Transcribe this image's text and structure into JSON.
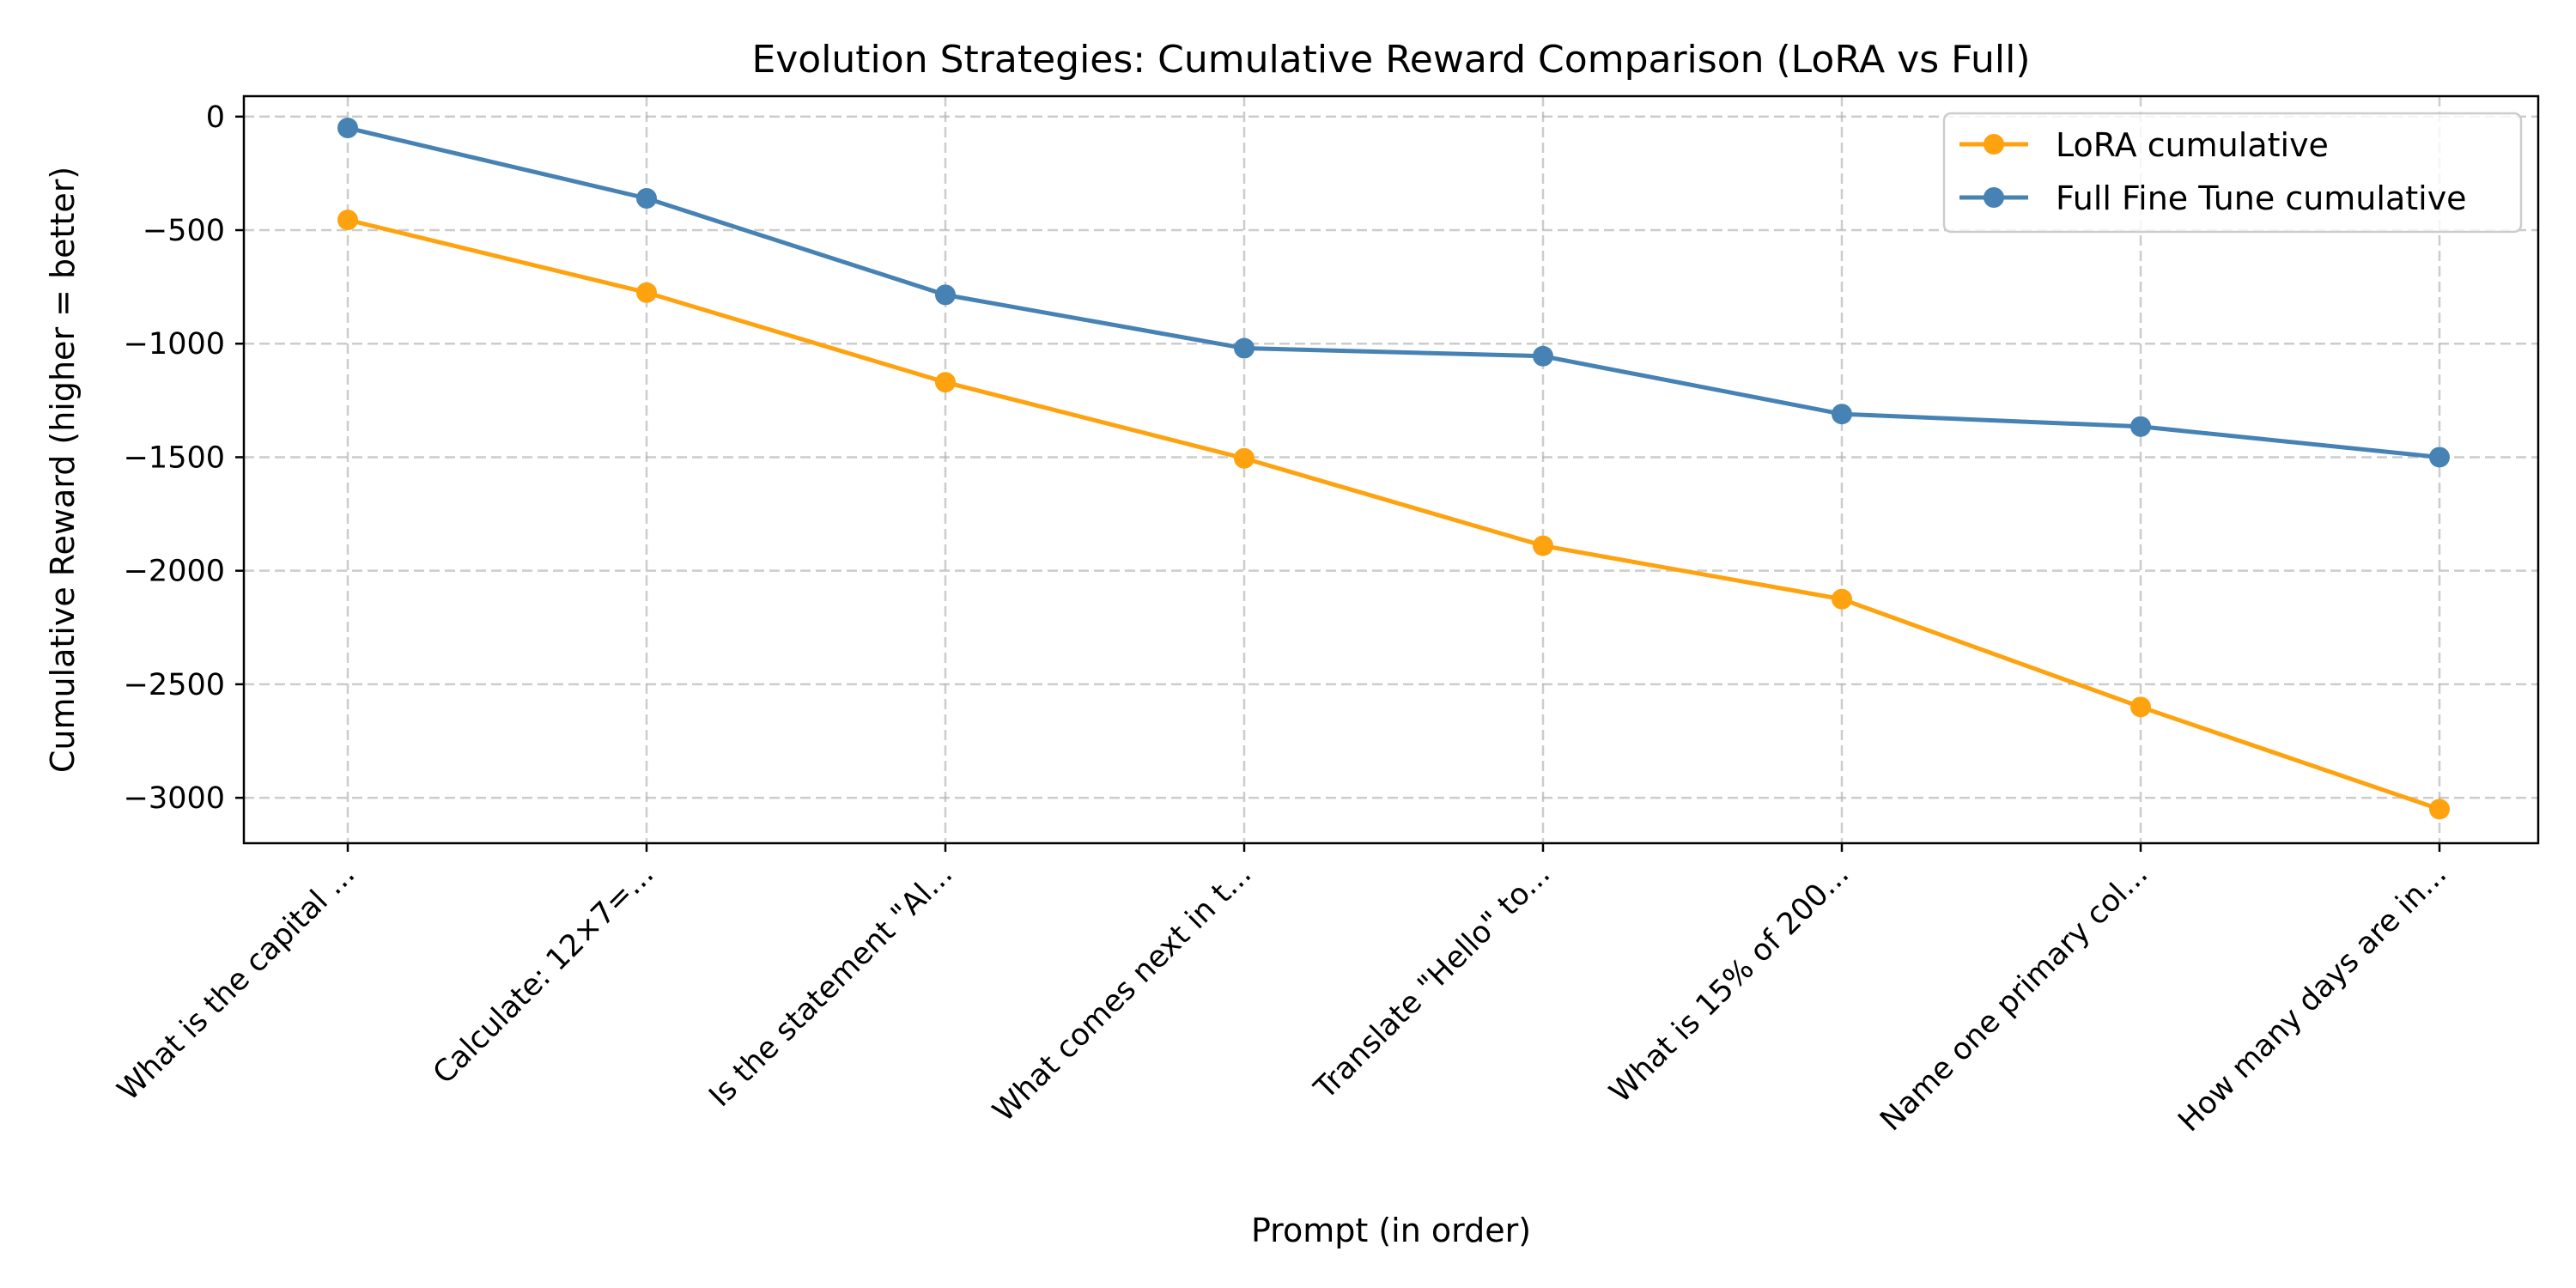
{
  "chart_data": {
    "type": "line",
    "title": "Evolution Strategies: Cumulative Reward Comparison (LoRA vs Full)",
    "xlabel": "Prompt (in order)",
    "ylabel": "Cumulative Reward (higher = better)",
    "categories": [
      "What is the capital ...",
      "Calculate: 12×7=...",
      "Is the statement \"Al...",
      "What comes next in t...",
      "Translate \"Hello\" to...",
      "What is 15% of 200...",
      "Name one primary col...",
      "How many days are in..."
    ],
    "ylim": [
      -3200,
      90
    ],
    "yticks": [
      0,
      -500,
      -1000,
      -1500,
      -2000,
      -2500,
      -3000
    ],
    "ytick_labels": [
      "0",
      "−500",
      "−1000",
      "−1500",
      "−2000",
      "−2500",
      "−3000"
    ],
    "grid": true,
    "legend_position": "top-right",
    "series": [
      {
        "name": "LoRA cumulative",
        "color": "#ffa20f",
        "marker": "circle",
        "values": [
          -455,
          -775,
          -1170,
          -1505,
          -1890,
          -2125,
          -2600,
          -3050
        ]
      },
      {
        "name": "Full Fine Tune cumulative",
        "color": "#4682b4",
        "marker": "circle",
        "values": [
          -50,
          -360,
          -785,
          -1020,
          -1055,
          -1310,
          -1365,
          -1500
        ]
      }
    ]
  }
}
